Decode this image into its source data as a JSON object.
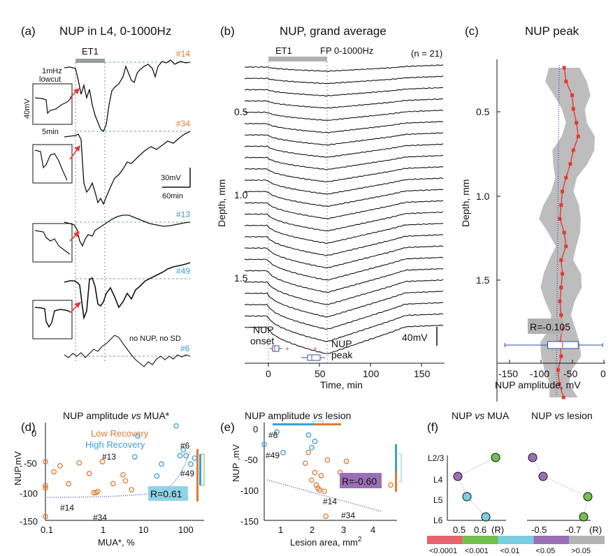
{
  "panels": {
    "a": {
      "label": "(a)",
      "title": "NUP in L4, 0-1000Hz",
      "et1": "ET1",
      "inset_labels": {
        "cutoff_top": "1mHz",
        "cutoff_bottom": "lowcut",
        "amp": "40mV",
        "time": "5min"
      },
      "scale": {
        "amp": "30mV",
        "time": "60min"
      },
      "note": "no NUP, no SD",
      "trace_ids": [
        "#14",
        "#34",
        "#13",
        "#49",
        "#6"
      ],
      "trace_colors": [
        "#e07b2e",
        "#e07b2e",
        "#3a9fd6",
        "#3a9fd6",
        "#3a9fd6"
      ]
    },
    "b": {
      "label": "(b)",
      "title": "NUP, grand average",
      "et1": "ET1",
      "fp": "FP 0-1000Hz",
      "n": "(n = 21)",
      "ylabel": "Depth, mm",
      "xlabel": "Time, min",
      "yticks": [
        "0.5",
        "1.0",
        "1.5"
      ],
      "xticks": [
        "0",
        "50",
        "100",
        "150"
      ],
      "onset": [
        "NUP",
        "onset"
      ],
      "peak": [
        "NUP",
        "peak"
      ],
      "scale": "40mV"
    },
    "c": {
      "label": "(c)",
      "title": "NUP peak",
      "ylabel": "Depth, mm",
      "xlabel": "NUP amplitude, mV",
      "yticks": [
        "0.5",
        "1.0",
        "1.5"
      ],
      "xticks": [
        "-150",
        "-100",
        "-50",
        "0"
      ],
      "r": "R=-0.105"
    },
    "d": {
      "label": "(d)",
      "title_a": "NUP amplitude ",
      "title_vs": "vs",
      "title_b": " MUA*",
      "legend_low": "Low Recovery",
      "legend_high": "High Recovery",
      "ylabel": "NUP,mV",
      "xlabel": "MUA*, %",
      "yticks": [
        "0",
        "-50",
        "-100",
        "-150"
      ],
      "xticks": [
        "0.1",
        "1",
        "10",
        "100"
      ],
      "r": "R=0.61",
      "annotations": [
        "#13",
        "#6",
        "#49",
        "#14",
        "#34"
      ]
    },
    "e": {
      "label": "(e)",
      "title_a": "NUP amplitude ",
      "title_vs": "vs",
      "title_b": " lesion",
      "ylabel": "NUP ,mV",
      "xlabel": "Lesion area, mm",
      "xlabel_sup": "2",
      "yticks": [
        "0",
        "-50",
        "-100",
        "-150"
      ],
      "xticks": [
        "1",
        "2",
        "3",
        "4"
      ],
      "r": "R=-0.60",
      "annotations": [
        "#6",
        "#49",
        "#14",
        "#34"
      ]
    },
    "f": {
      "label": "(f)",
      "title_left_a": "NUP ",
      "title_left_vs": "vs",
      "title_left_b": " MUA",
      "title_right_a": "NUP ",
      "title_right_vs": "vs",
      "title_right_b": " lesion",
      "layers": [
        "L2/3",
        "L4",
        "L5",
        "L6"
      ],
      "left_xticks": [
        "0.5",
        "0.6",
        "(R)"
      ],
      "right_xticks": [
        "-0.5",
        "-0.7",
        "(R)"
      ],
      "colorbar": [
        {
          "color": "#e8626b",
          "label": "<0.0001"
        },
        {
          "color": "#72c04e",
          "label": "<0.001"
        },
        {
          "color": "#79cfe0",
          "label": "<0.01"
        },
        {
          "color": "#9b6fb5",
          "label": "<0.05"
        },
        {
          "color": "#b3b3b3",
          "label": ">0.05"
        }
      ]
    }
  },
  "chart_data": [
    {
      "panel": "c",
      "type": "line",
      "title": "NUP peak",
      "xlabel": "NUP amplitude, mV",
      "ylabel": "Depth, mm",
      "xlim": [
        -175,
        0
      ],
      "ylim": [
        1.75,
        0.2
      ],
      "series": [
        {
          "x": [
            -65,
            -62,
            -52,
            -50,
            -45,
            -42,
            -50,
            -55,
            -62,
            -68,
            -70,
            -72,
            -65,
            -62,
            -70,
            -68,
            -70,
            -72,
            -70,
            -68,
            -72,
            -70,
            -75,
            -73,
            -66
          ],
          "y": [
            0.24,
            0.3,
            0.36,
            0.42,
            0.48,
            0.54,
            0.6,
            0.66,
            0.72,
            0.78,
            0.84,
            0.9,
            0.96,
            1.02,
            1.08,
            1.14,
            1.2,
            1.26,
            1.32,
            1.38,
            1.44,
            1.5,
            1.56,
            1.62,
            1.68
          ]
        }
      ],
      "boxplot": {
        "min": -162,
        "q1": -92,
        "median": -68,
        "q3": -42,
        "max": -2
      }
    },
    {
      "panel": "d",
      "type": "scatter",
      "title": "NUP amplitude vs MUA*",
      "xlabel": "MUA*, %",
      "ylabel": "NUP,mV",
      "xlim": [
        0.1,
        160
      ],
      "ylim": [
        -150,
        20
      ],
      "series": [
        {
          "name": "Low Recovery",
          "x": [
            0.1,
            0.1,
            0.1,
            0.15,
            0.2,
            0.3,
            0.5,
            0.8,
            1.0,
            1.1,
            1.2,
            1.5,
            2.5,
            4.0,
            4.5,
            6.0,
            0.1
          ],
          "y": [
            -48,
            -88,
            -92,
            -65,
            -55,
            -85,
            -50,
            -68,
            -100,
            -100,
            -98,
            -48,
            -85,
            -70,
            -80,
            -95,
            -140
          ]
        },
        {
          "name": "High Recovery",
          "x": [
            7,
            8,
            20,
            25,
            50,
            60,
            70,
            80,
            100,
            120
          ],
          "y": [
            -40,
            -5,
            -72,
            -52,
            12,
            -38,
            -28,
            -38,
            -52,
            -42
          ]
        }
      ]
    },
    {
      "panel": "e",
      "type": "scatter",
      "title": "NUP amplitude vs lesion",
      "xlabel": "Lesion area, mm2",
      "ylabel": "NUP ,mV",
      "xlim": [
        0.6,
        4.8
      ],
      "ylim": [
        -150,
        10
      ],
      "series": [
        {
          "name": "Low Recovery",
          "x": [
            1.9,
            2.0,
            2.1,
            2.2,
            2.25,
            2.3,
            2.35,
            2.4,
            2.5,
            2.55,
            2.6,
            3.0,
            3.2,
            4.6
          ],
          "y": [
            -55,
            -38,
            -82,
            -70,
            -90,
            -95,
            -98,
            -75,
            -100,
            -140,
            -50,
            -70,
            -52,
            -90
          ]
        },
        {
          "name": "High Recovery",
          "x": [
            0.6,
            1.0,
            1.2,
            2.0,
            2.2,
            2.1
          ],
          "y": [
            -25,
            -5,
            -38,
            -10,
            -20,
            -30
          ]
        }
      ]
    }
  ]
}
